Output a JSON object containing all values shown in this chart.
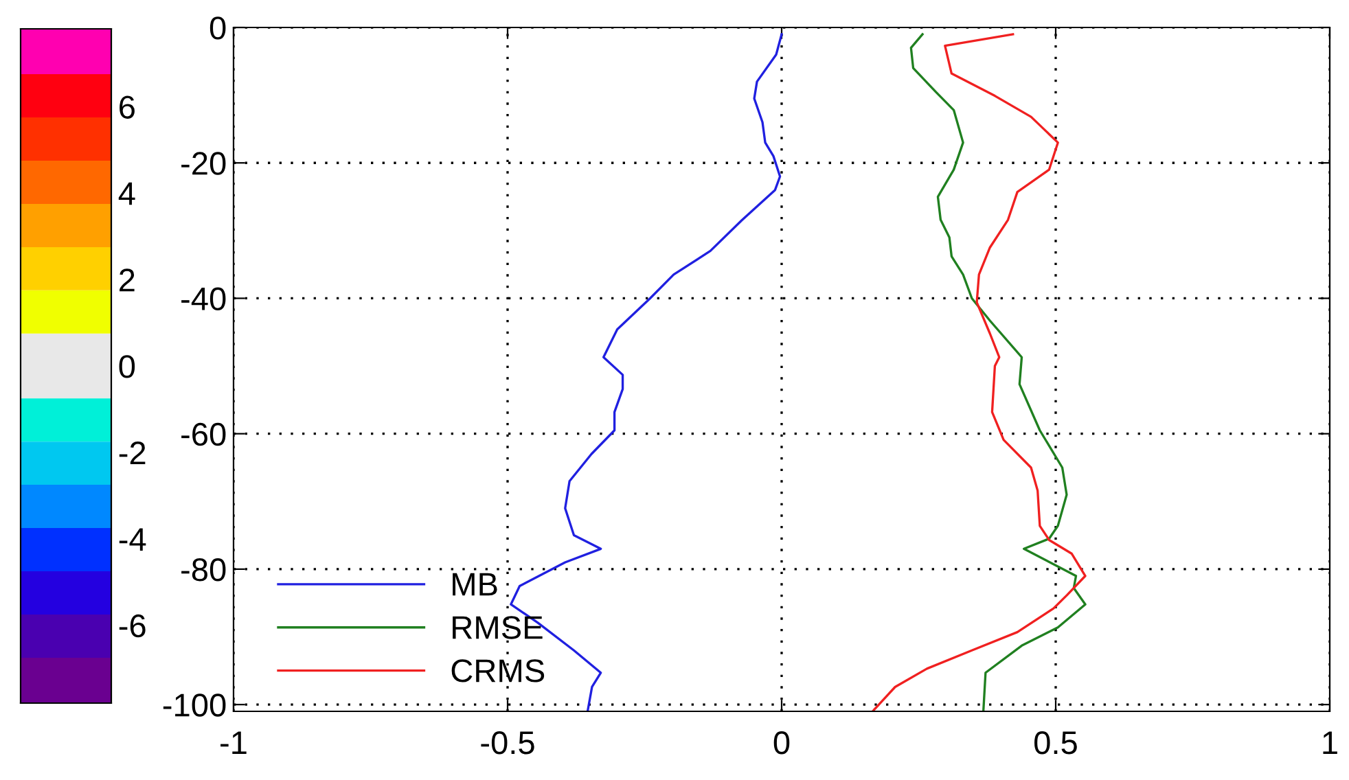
{
  "chart_data": [
    {
      "type": "bar",
      "stacked": true,
      "categories": [
        null
      ],
      "ylim": [
        -7.8,
        7.8
      ],
      "yticks": [
        -6,
        -4,
        -2,
        0,
        2,
        4,
        6
      ],
      "tick_labels": "y",
      "series": [
        {
          "color": "#e8e8e8",
          "values": [
            0.75
          ]
        },
        {
          "color": "#f0ff00",
          "values": [
            1.0
          ]
        },
        {
          "color": "#ffd000",
          "values": [
            1.0
          ]
        },
        {
          "color": "#ffa000",
          "values": [
            1.0
          ]
        },
        {
          "color": "#ff6800",
          "values": [
            1.0
          ]
        },
        {
          "color": "#ff3000",
          "values": [
            1.0
          ]
        },
        {
          "color": "#ff0010",
          "values": [
            1.0
          ]
        },
        {
          "color": "#ff00b0",
          "values": [
            1.05
          ]
        },
        {
          "color": "#e8e8e8",
          "values": [
            -0.75
          ]
        },
        {
          "color": "#00f0d8",
          "values": [
            -1.0
          ]
        },
        {
          "color": "#00c8f0",
          "values": [
            -1.0
          ]
        },
        {
          "color": "#0088ff",
          "values": [
            -1.0
          ]
        },
        {
          "color": "#0030ff",
          "values": [
            -1.0
          ]
        },
        {
          "color": "#2400e0",
          "values": [
            -1.0
          ]
        },
        {
          "color": "#4a00b0",
          "values": [
            -1.0
          ]
        },
        {
          "color": "#6a0090",
          "values": [
            -1.05
          ]
        }
      ]
    },
    {
      "type": "line",
      "xlim": [
        -1,
        1
      ],
      "xticks": [
        -1,
        -0.5,
        0,
        0.5,
        1
      ],
      "ylim": [
        -101,
        0
      ],
      "yticks": [
        -100,
        -80,
        -60,
        -40,
        -20,
        0
      ],
      "grid": true,
      "legend": "bottom left",
      "series": [
        {
          "name": "MB",
          "color": "#2020e0",
          "x": [
            0.0,
            -0.01,
            -0.045,
            -0.05,
            -0.035,
            -0.03,
            -0.015,
            -0.003,
            -0.012,
            -0.073,
            -0.13,
            -0.197,
            -0.24,
            -0.3,
            -0.325,
            -0.29,
            -0.29,
            -0.305,
            -0.305,
            -0.347,
            -0.387,
            -0.395,
            -0.379,
            -0.33,
            -0.395,
            -0.478,
            -0.494,
            -0.445,
            -0.379,
            -0.33,
            -0.346,
            -0.354
          ],
          "values": [
            -1,
            -4,
            -8,
            -10.5,
            -14,
            -17,
            -19,
            -22,
            -24,
            -28.5,
            -33,
            -36.5,
            -40,
            -44.6,
            -48.7,
            -51.3,
            -53.4,
            -56.8,
            -59.5,
            -63,
            -67,
            -71,
            -75,
            -77,
            -79,
            -82.5,
            -85.2,
            -87.9,
            -92,
            -95.3,
            -97.4,
            -101
          ]
        },
        {
          "name": "RMSE",
          "color": "#208020",
          "x": [
            0.257,
            0.236,
            0.24,
            0.281,
            0.314,
            0.331,
            0.314,
            0.285,
            0.29,
            0.306,
            0.31,
            0.331,
            0.347,
            0.38,
            0.438,
            0.434,
            0.471,
            0.512,
            0.52,
            0.504,
            0.488,
            0.442,
            0.537,
            0.533,
            0.554,
            0.504,
            0.438,
            0.372,
            0.368
          ],
          "values": [
            -1,
            -3,
            -6,
            -9.5,
            -12.2,
            -17,
            -21,
            -25,
            -28.4,
            -31,
            -33.8,
            -36.5,
            -40,
            -43.3,
            -48.7,
            -52.7,
            -59.5,
            -65,
            -69,
            -73.6,
            -75.5,
            -77,
            -81,
            -82.8,
            -85.2,
            -88.6,
            -91.3,
            -95.3,
            -101
          ]
        },
        {
          "name": "CRMS",
          "color": "#f02020",
          "x": [
            0.422,
            0.298,
            0.31,
            0.389,
            0.455,
            0.504,
            0.488,
            0.43,
            0.413,
            0.38,
            0.36,
            0.356,
            0.38,
            0.397,
            0.389,
            0.384,
            0.405,
            0.455,
            0.467,
            0.471,
            0.488,
            0.529,
            0.554,
            0.521,
            0.496,
            0.43,
            0.347,
            0.265,
            0.207,
            0.166
          ],
          "values": [
            -1,
            -2.7,
            -6.8,
            -10.1,
            -13.2,
            -17,
            -21,
            -24.3,
            -28.4,
            -32.5,
            -36.5,
            -40.6,
            -45.2,
            -48.7,
            -50,
            -56.8,
            -60.9,
            -65,
            -68.4,
            -73.6,
            -75.7,
            -77.7,
            -81,
            -83.8,
            -85.8,
            -89.3,
            -92,
            -94.7,
            -97.4,
            -101
          ]
        }
      ]
    }
  ]
}
